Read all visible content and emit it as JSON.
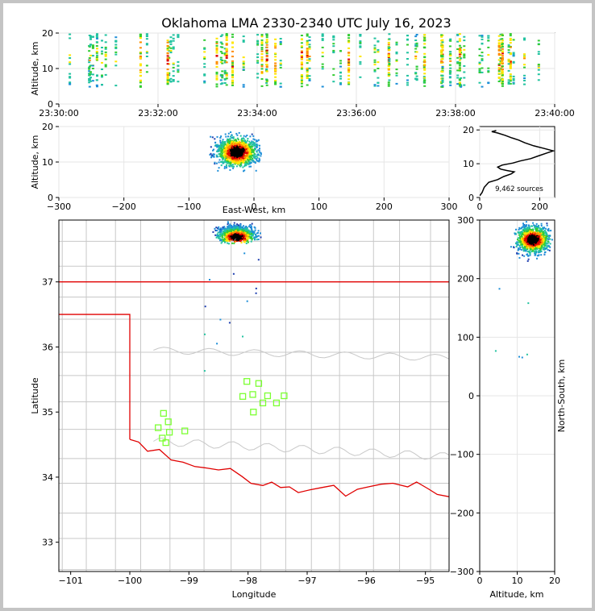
{
  "title": "Oklahoma LMA 2330-2340 UTC July 16, 2023",
  "colors": {
    "state_border": "#e00000",
    "county_lines": "#c8c8c8",
    "grid": "#e6e6e6",
    "station_marker": "#7cff33",
    "density_ramp": [
      "#ffffff",
      "#1f3fb0",
      "#1e8fd8",
      "#22c3a0",
      "#33cc33",
      "#ffe600",
      "#ff8c00",
      "#dd0000",
      "#000000"
    ]
  },
  "chart_data": [
    {
      "id": "time-height",
      "type": "heatmap",
      "title": "",
      "xlabel": "",
      "ylabel": "Altitude, km",
      "xlim": [
        "23:30:00",
        "23:40:00"
      ],
      "ylim": [
        0,
        20
      ],
      "xticks": [
        "23:30:00",
        "23:32:00",
        "23:34:00",
        "23:36:00",
        "23:38:00",
        "23:40:00"
      ],
      "yticks": [
        "0",
        "10",
        "20"
      ],
      "grid": true
    },
    {
      "id": "ew-height",
      "type": "heatmap",
      "xlabel": "East-West, km",
      "ylabel": "Altitude, km",
      "xlim": [
        -300,
        300
      ],
      "ylim": [
        0,
        20
      ],
      "xticks": [
        "−300",
        "−200",
        "−100",
        "0",
        "100",
        "200",
        "300"
      ],
      "yticks": [
        "0",
        "10",
        "20"
      ],
      "cluster": {
        "x_range": [
          -110,
          10
        ],
        "core_x": -27,
        "core_alt": 13
      },
      "grid": true
    },
    {
      "id": "altitude-histogram",
      "type": "line",
      "xlabel": "",
      "ylabel": "",
      "xlim": [
        0,
        250
      ],
      "ylim": [
        0,
        21
      ],
      "xticks": [
        "0",
        "200"
      ],
      "yticks": [
        "0",
        "10",
        "20"
      ],
      "annotation": "9,462 sources",
      "profile": [
        [
          0,
          0.5
        ],
        [
          8,
          1.5
        ],
        [
          15,
          3
        ],
        [
          30,
          4.5
        ],
        [
          60,
          5.3
        ],
        [
          80,
          6.2
        ],
        [
          105,
          7
        ],
        [
          115,
          7.6
        ],
        [
          90,
          8
        ],
        [
          70,
          8.4
        ],
        [
          60,
          9
        ],
        [
          75,
          9.6
        ],
        [
          110,
          10.2
        ],
        [
          135,
          10.8
        ],
        [
          170,
          11.5
        ],
        [
          195,
          12.3
        ],
        [
          225,
          13.2
        ],
        [
          245,
          13.8
        ],
        [
          215,
          14.5
        ],
        [
          180,
          15.3
        ],
        [
          150,
          16.2
        ],
        [
          130,
          17
        ],
        [
          105,
          17.7
        ],
        [
          85,
          18.4
        ],
        [
          60,
          19.1
        ],
        [
          40,
          19.5
        ],
        [
          55,
          19.8
        ]
      ],
      "grid": true
    },
    {
      "id": "plan-view",
      "type": "scatter",
      "xlabel": "Longitude",
      "ylabel": "Latitude",
      "xlim": [
        -101.2,
        -94.6
      ],
      "ylim": [
        32.55,
        37.95
      ],
      "xticks": [
        "−101",
        "−100",
        "−99",
        "−98",
        "−97",
        "−96",
        "−95"
      ],
      "yticks": [
        "33",
        "34",
        "35",
        "36",
        "37"
      ],
      "core": {
        "lon": -98.2,
        "lat": 37.7
      },
      "stations": [
        [
          -98.02,
          35.47
        ],
        [
          -97.82,
          35.44
        ],
        [
          -98.09,
          35.24
        ],
        [
          -97.92,
          35.27
        ],
        [
          -97.67,
          35.25
        ],
        [
          -97.39,
          35.25
        ],
        [
          -97.75,
          35.14
        ],
        [
          -97.52,
          35.14
        ],
        [
          -97.91,
          35.0
        ],
        [
          -99.43,
          34.98
        ],
        [
          -99.35,
          34.85
        ],
        [
          -99.52,
          34.76
        ],
        [
          -99.33,
          34.69
        ],
        [
          -99.07,
          34.71
        ],
        [
          -99.45,
          34.6
        ],
        [
          -99.39,
          34.53
        ]
      ],
      "grid": false
    },
    {
      "id": "ns-height",
      "type": "heatmap",
      "xlabel": "Altitude, km",
      "ylabel": "North-South, km",
      "xlim": [
        0,
        20
      ],
      "ylim": [
        -300,
        300
      ],
      "xticks": [
        "0",
        "10",
        "20"
      ],
      "yticks": [
        "−300",
        "−200",
        "−100",
        "0",
        "100",
        "200",
        "300"
      ],
      "cluster": {
        "ns_range": [
          225,
          300
        ],
        "core_ns": 268,
        "core_alt": 14
      },
      "grid": true
    }
  ]
}
